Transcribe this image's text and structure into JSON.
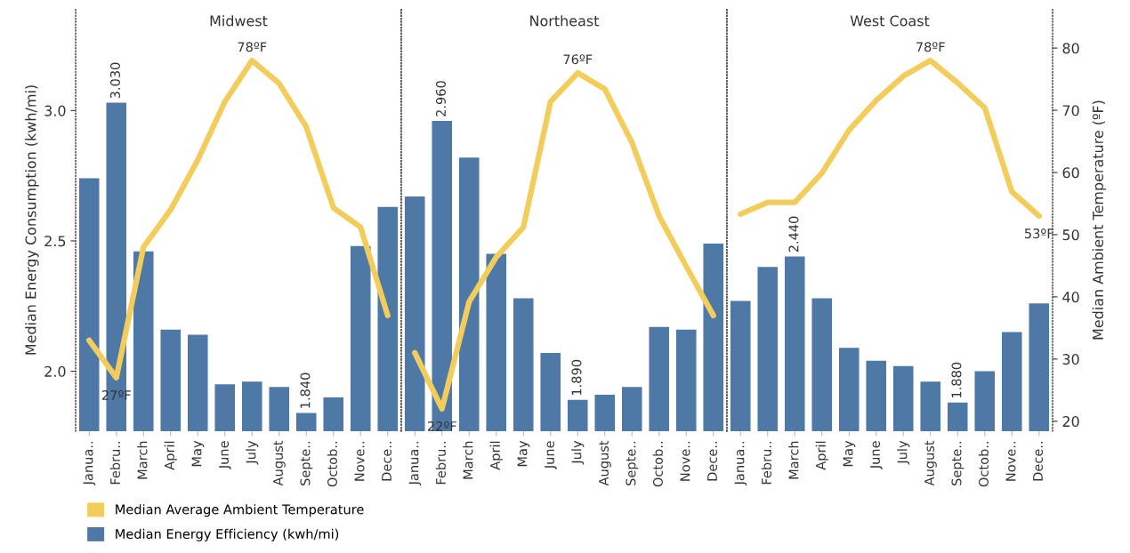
{
  "chart_data": [
    {
      "type": "bar",
      "title": "Midwest",
      "ylabel": "Median Energy Consumption (kwh/mi)",
      "categories": [
        "Janua..",
        "Febru..",
        "March",
        "April",
        "May",
        "June",
        "July",
        "August",
        "Septe..",
        "Octob..",
        "Nove..",
        "Dece.."
      ],
      "ylim": [
        1.77,
        3.39
      ],
      "yticks": [
        {
          "value": 2,
          "label": "2.0"
        },
        {
          "value": 2.5,
          "label": "2.5"
        },
        {
          "value": 3,
          "label": "3.0"
        }
      ],
      "y2lim": [
        18.4,
        86.3
      ],
      "tick_labels": "xy",
      "legend": "bottom left",
      "series": [
        {
          "name": "Median Energy Efficiency (kwh/mi)",
          "color": "#4e79a7",
          "values": [
            2.74,
            3.03,
            2.46,
            2.16,
            2.14,
            1.95,
            1.96,
            1.94,
            1.84,
            1.9,
            2.48,
            2.63
          ],
          "value_labels": [
            null,
            "3.030",
            null,
            null,
            null,
            null,
            null,
            null,
            "1.840",
            null,
            null,
            null
          ]
        },
        {
          "type": "line",
          "axis": "y2",
          "name": "Median Average Ambient Temperature",
          "color": "#f2cd5c",
          "values": [
            33,
            27,
            48,
            54,
            62,
            71.4,
            78,
            74.3,
            67.3,
            54.3,
            51.2,
            37
          ],
          "value_labels": [
            null,
            "27ºF",
            null,
            null,
            null,
            null,
            "78ºF",
            null,
            null,
            null,
            null,
            null
          ]
        }
      ]
    },
    {
      "type": "bar",
      "title": "Northeast",
      "categories": [
        "Janua..",
        "Febru..",
        "March",
        "April",
        "May",
        "June",
        "July",
        "August",
        "Septe..",
        "Octob..",
        "Nove..",
        "Dece.."
      ],
      "ylim": [
        1.77,
        3.39
      ],
      "y2lim": [
        18.4,
        86.3
      ],
      "tick_labels": "x",
      "series": [
        {
          "color": "#4e79a7",
          "values": [
            2.67,
            2.96,
            2.82,
            2.45,
            2.28,
            2.07,
            1.89,
            1.91,
            1.94,
            2.17,
            2.16,
            2.49
          ],
          "value_labels": [
            null,
            "2.960",
            null,
            null,
            null,
            null,
            "1.890",
            null,
            null,
            null,
            null,
            null
          ]
        },
        {
          "type": "line",
          "axis": "y2",
          "color": "#f2cd5c",
          "values": [
            31,
            22,
            39.2,
            46.4,
            51.2,
            71.4,
            76,
            73.4,
            64.8,
            53,
            44.9,
            37
          ],
          "value_labels": [
            null,
            "22ºF",
            null,
            null,
            null,
            null,
            "76ºF",
            null,
            null,
            null,
            null,
            null
          ]
        }
      ]
    },
    {
      "type": "bar",
      "title": "West Coast",
      "y2label": "Median Ambient Temperature (ºF)",
      "categories": [
        "Janua..",
        "Febru..",
        "March",
        "April",
        "May",
        "June",
        "July",
        "August",
        "Septe..",
        "Octob..",
        "Nove..",
        "Dece.."
      ],
      "ylim": [
        1.77,
        3.39
      ],
      "y2lim": [
        18.4,
        86.3
      ],
      "y2ticks": [
        20,
        30,
        40,
        50,
        60,
        70,
        80
      ],
      "tick_labels": "xy2",
      "series": [
        {
          "color": "#4e79a7",
          "values": [
            2.27,
            2.4,
            2.44,
            2.28,
            2.09,
            2.04,
            2.02,
            1.96,
            1.88,
            2.0,
            2.15,
            2.26
          ],
          "value_labels": [
            null,
            null,
            "2.440",
            null,
            null,
            null,
            null,
            null,
            "1.880",
            null,
            null,
            null
          ]
        },
        {
          "type": "line",
          "axis": "y2",
          "color": "#f2cd5c",
          "values": [
            53.3,
            55.2,
            55.2,
            59.9,
            66.8,
            71.6,
            75.5,
            78,
            74.4,
            70.4,
            56.9,
            53
          ],
          "value_labels": [
            null,
            null,
            null,
            null,
            null,
            null,
            null,
            "78ºF",
            null,
            null,
            null,
            "53ºF"
          ]
        }
      ]
    }
  ]
}
